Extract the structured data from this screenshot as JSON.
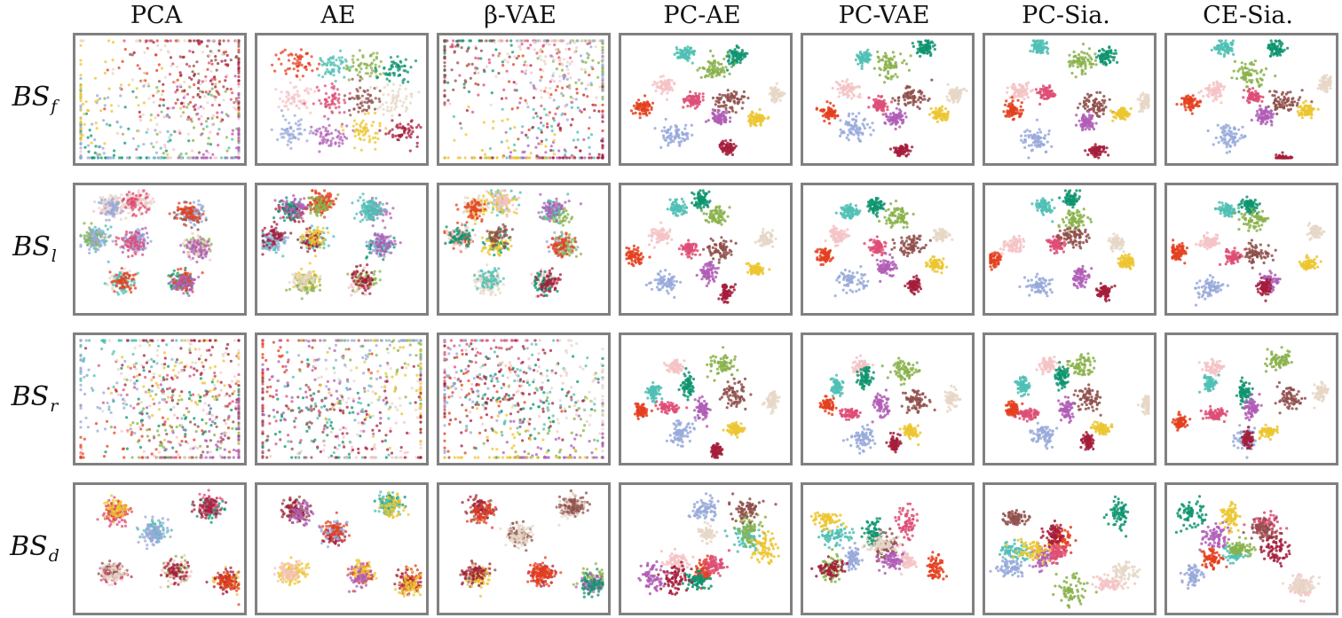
{
  "palette": {
    "classes": [
      "#e4401f",
      "#4fbfb4",
      "#8ab24a",
      "#0e9470",
      "#f5c3c5",
      "#de4d75",
      "#8f4f4a",
      "#e6d7c7",
      "#98a9da",
      "#b05db6",
      "#ecc530",
      "#a51d3b"
    ],
    "panel_border": "#808080"
  },
  "chart_data": {
    "type": "scatter",
    "description_kind": "grid of 2-D embedding scatter plots, points coloured by class",
    "columns": [
      "PCA",
      "AE",
      "β-VAE",
      "PC-AE",
      "PC-VAE",
      "PC-Sia.",
      "CE-Sia."
    ],
    "rows": [
      {
        "label": "BS",
        "subscript": "f"
      },
      {
        "label": "BS",
        "subscript": "l"
      },
      {
        "label": "BS",
        "subscript": "r"
      },
      {
        "label": "BS",
        "subscript": "d"
      }
    ],
    "grid": false,
    "axes_visible": false,
    "num_classes": 12
  }
}
